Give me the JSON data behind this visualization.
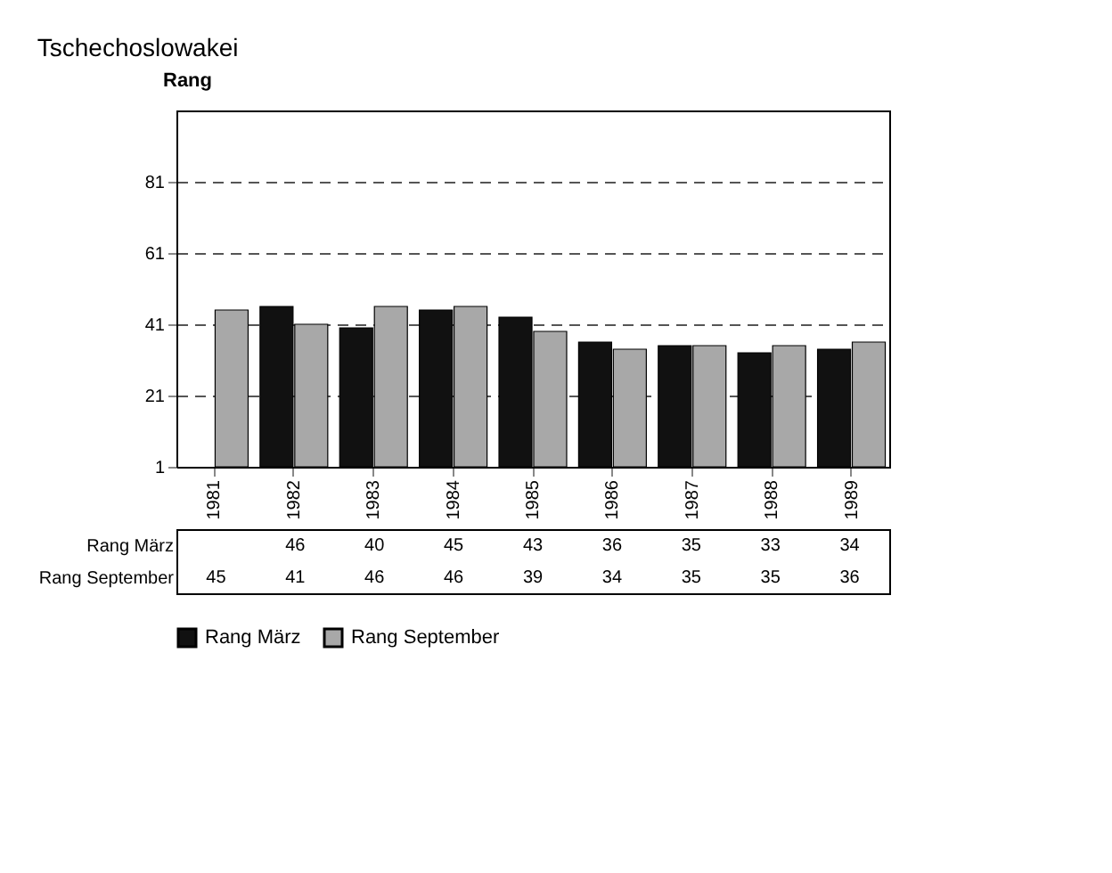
{
  "chart_data": {
    "type": "bar",
    "title": "Tschechoslowakei",
    "ylabel": "Rang",
    "categories": [
      "1981",
      "1982",
      "1983",
      "1984",
      "1985",
      "1986",
      "1987",
      "1988",
      "1989"
    ],
    "series": [
      {
        "name": "Rang März",
        "color": "#111111",
        "values": [
          null,
          46,
          40,
          45,
          43,
          36,
          35,
          33,
          34
        ]
      },
      {
        "name": "Rang September",
        "color": "#a8a8a8",
        "values": [
          45,
          41,
          46,
          46,
          39,
          34,
          35,
          35,
          36
        ]
      }
    ],
    "ylim": [
      1,
      101
    ],
    "yticks": [
      1,
      21,
      41,
      61,
      81
    ],
    "grid": "y",
    "line_style": "dashed",
    "data_labels": true,
    "legend": "bottom"
  }
}
